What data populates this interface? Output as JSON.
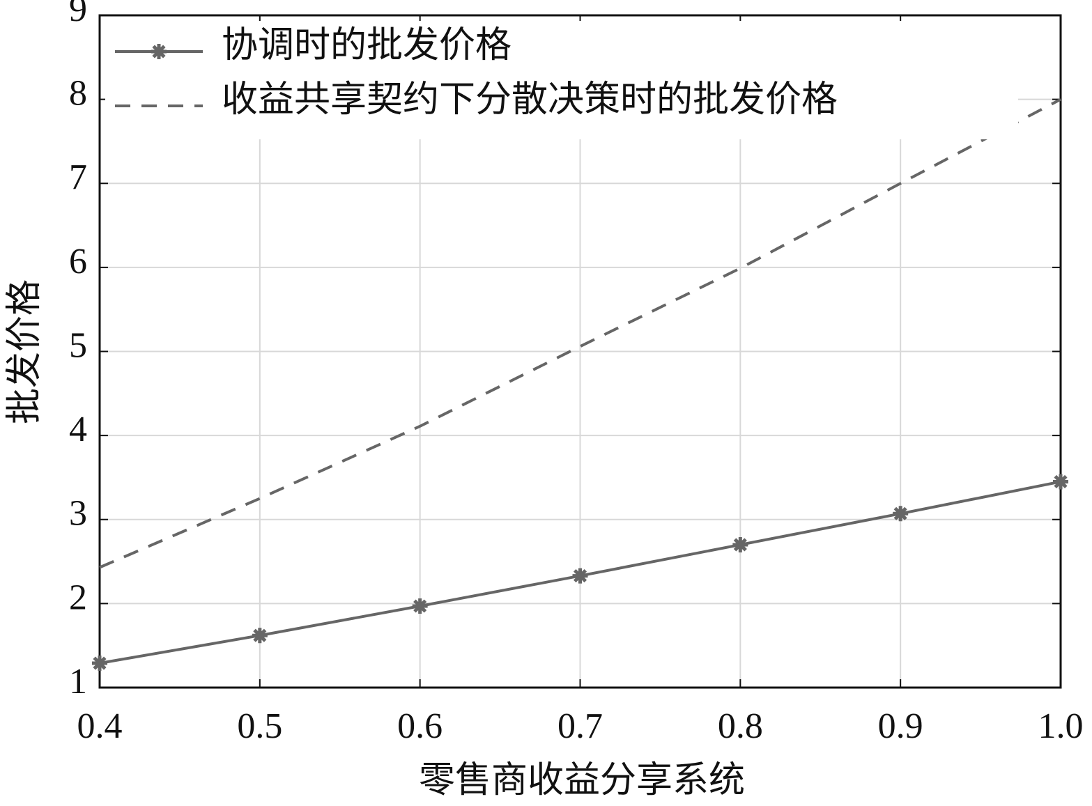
{
  "chart_data": {
    "type": "line",
    "x_label": "零售商收益分享系统",
    "y_label": "批发价格",
    "x": [
      0.4,
      0.5,
      0.6,
      0.7,
      0.8,
      0.9,
      1.0
    ],
    "series": [
      {
        "name": "协调时的批发价格",
        "color": "#666666",
        "style": "solid",
        "marker": "star",
        "values": [
          1.29,
          1.62,
          1.97,
          2.33,
          2.7,
          3.07,
          3.45
        ]
      },
      {
        "name": "收益共享契约下分散决策时的批发价格",
        "color": "#666666",
        "style": "dashed",
        "marker": "none",
        "values": [
          2.43,
          3.25,
          4.11,
          5.06,
          5.99,
          7.0,
          8.0
        ]
      }
    ],
    "xlim": [
      0.4,
      1.0
    ],
    "xticks": [
      0.4,
      0.5,
      0.6,
      0.7,
      0.8,
      0.9,
      {
        "value": 1.0,
        "label": "1.0"
      }
    ],
    "ylim": [
      1,
      9
    ],
    "yticks": [
      1,
      2,
      3,
      4,
      5,
      6,
      7,
      8,
      9
    ],
    "grid": true,
    "legend": "upper-left"
  }
}
